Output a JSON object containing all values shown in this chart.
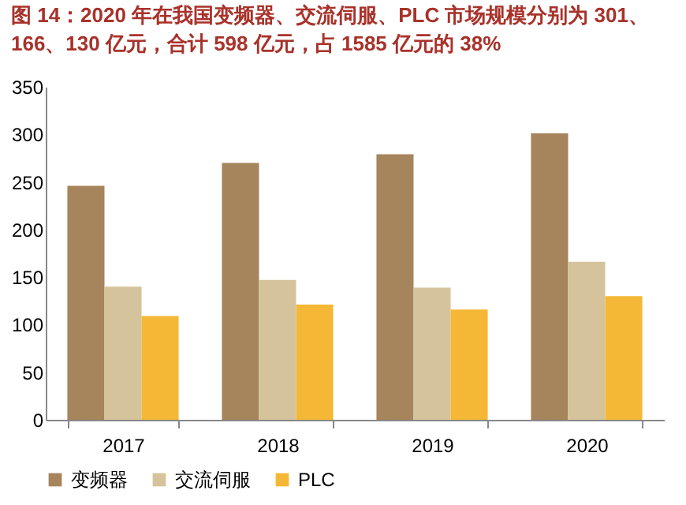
{
  "chart_data": {
    "type": "bar",
    "title": "图 14：2020 年在我国变频器、交流伺服、PLC 市场规模分别为 301、166、130 亿元，合计 598 亿元，占 1585 亿元的 38%",
    "categories": [
      "2017",
      "2018",
      "2019",
      "2020"
    ],
    "series": [
      {
        "name": "变频器",
        "color": "#a6845c",
        "values": [
          246,
          270,
          279,
          301
        ]
      },
      {
        "name": "交流伺服",
        "color": "#d5c49b",
        "values": [
          140,
          147,
          139,
          166
        ]
      },
      {
        "name": "PLC",
        "color": "#f4b836",
        "values": [
          109,
          121,
          116,
          130
        ]
      }
    ],
    "ylim": [
      0,
      350
    ],
    "yticks": [
      0,
      50,
      100,
      150,
      200,
      250,
      300,
      350
    ],
    "grid": false,
    "legend": "bottom"
  }
}
